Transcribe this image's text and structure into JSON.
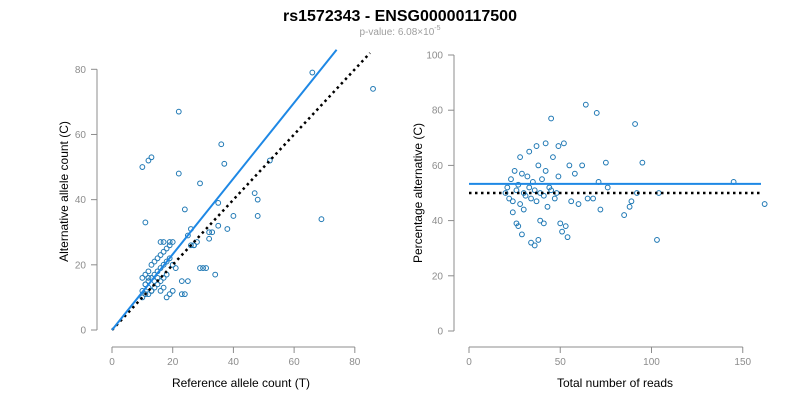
{
  "figure": {
    "title": "rs1572343 - ENSG00000117500",
    "subtitle_prefix": "p-value: 6.08×10",
    "subtitle_exponent": "-5"
  },
  "colors": {
    "points": "#1f78b4",
    "fit_line": "#1e88e5",
    "reference_line": "#000000",
    "axis": "#8c8c8c",
    "title": "#000000",
    "subtitle": "#9e9e9e"
  },
  "chart_data": [
    {
      "type": "scatter",
      "xlabel": "Reference allele count (T)",
      "ylabel": "Alternative allele count (C)",
      "xlim": [
        0,
        85
      ],
      "ylim": [
        0,
        85
      ],
      "xticks": [
        0,
        20,
        40,
        60,
        80
      ],
      "yticks": [
        0,
        20,
        40,
        60,
        80
      ],
      "grid": false,
      "points": [
        [
          10,
          10
        ],
        [
          11,
          11
        ],
        [
          12,
          11
        ],
        [
          13,
          12
        ],
        [
          14,
          13
        ],
        [
          15,
          14
        ],
        [
          16,
          15
        ],
        [
          17,
          16
        ],
        [
          18,
          17
        ],
        [
          12,
          13
        ],
        [
          10,
          12
        ],
        [
          11,
          14
        ],
        [
          12,
          15
        ],
        [
          13,
          16
        ],
        [
          14,
          17
        ],
        [
          15,
          18
        ],
        [
          16,
          19
        ],
        [
          17,
          20
        ],
        [
          18,
          21
        ],
        [
          19,
          22
        ],
        [
          10,
          16
        ],
        [
          11,
          17
        ],
        [
          12,
          18
        ],
        [
          13,
          20
        ],
        [
          14,
          21
        ],
        [
          15,
          22
        ],
        [
          16,
          23
        ],
        [
          17,
          24
        ],
        [
          18,
          25
        ],
        [
          19,
          26
        ],
        [
          11,
          14
        ],
        [
          12,
          16
        ],
        [
          13,
          12
        ],
        [
          14,
          15
        ],
        [
          15,
          16
        ],
        [
          16,
          12
        ],
        [
          17,
          13
        ],
        [
          18,
          10
        ],
        [
          19,
          11
        ],
        [
          20,
          12
        ],
        [
          10,
          50
        ],
        [
          11,
          33
        ],
        [
          12,
          52
        ],
        [
          13,
          53
        ],
        [
          16,
          27
        ],
        [
          17,
          27
        ],
        [
          19,
          27
        ],
        [
          20,
          27
        ],
        [
          22,
          67
        ],
        [
          22,
          48
        ],
        [
          24,
          37
        ],
        [
          25,
          29
        ],
        [
          26,
          31
        ],
        [
          27,
          26
        ],
        [
          28,
          27
        ],
        [
          29,
          45
        ],
        [
          29,
          19
        ],
        [
          30,
          19
        ],
        [
          31,
          19
        ],
        [
          32,
          28
        ],
        [
          32,
          30
        ],
        [
          33,
          30
        ],
        [
          34,
          17
        ],
        [
          35,
          39
        ],
        [
          35,
          32
        ],
        [
          36,
          57
        ],
        [
          37,
          51
        ],
        [
          38,
          31
        ],
        [
          40,
          35
        ],
        [
          47,
          42
        ],
        [
          48,
          40
        ],
        [
          48,
          35
        ],
        [
          52,
          52
        ],
        [
          66,
          79
        ],
        [
          69,
          34
        ],
        [
          86,
          74
        ],
        [
          20,
          20
        ],
        [
          21,
          19
        ],
        [
          23,
          15
        ],
        [
          24,
          11
        ],
        [
          25,
          15
        ],
        [
          23,
          11
        ],
        [
          26,
          26
        ],
        [
          27,
          26
        ]
      ],
      "fit_line": {
        "x": [
          0,
          74
        ],
        "y": [
          0,
          86
        ]
      },
      "reference_line": {
        "x": [
          0,
          85
        ],
        "y": [
          0,
          85
        ]
      }
    },
    {
      "type": "scatter",
      "xlabel": "Total number of reads",
      "ylabel": "Percentage alternative (C)",
      "xlim": [
        0,
        160
      ],
      "ylim": [
        0,
        100
      ],
      "xticks": [
        0,
        50,
        100,
        150
      ],
      "yticks": [
        0,
        20,
        40,
        60,
        80,
        100
      ],
      "grid": false,
      "points": [
        [
          20,
          50
        ],
        [
          21,
          52
        ],
        [
          22,
          48
        ],
        [
          23,
          55
        ],
        [
          24,
          47
        ],
        [
          25,
          58
        ],
        [
          26,
          51
        ],
        [
          27,
          53
        ],
        [
          28,
          46
        ],
        [
          29,
          57
        ],
        [
          30,
          50
        ],
        [
          31,
          49
        ],
        [
          32,
          56
        ],
        [
          33,
          52
        ],
        [
          34,
          48
        ],
        [
          35,
          54
        ],
        [
          36,
          51
        ],
        [
          37,
          47
        ],
        [
          38,
          60
        ],
        [
          39,
          50
        ],
        [
          40,
          55
        ],
        [
          41,
          49
        ],
        [
          42,
          58
        ],
        [
          43,
          45
        ],
        [
          44,
          52
        ],
        [
          45,
          51
        ],
        [
          46,
          63
        ],
        [
          47,
          48
        ],
        [
          48,
          50
        ],
        [
          49,
          56
        ],
        [
          26,
          39
        ],
        [
          27,
          38
        ],
        [
          29,
          35
        ],
        [
          34,
          32
        ],
        [
          36,
          31
        ],
        [
          38,
          33
        ],
        [
          39,
          40
        ],
        [
          41,
          39
        ],
        [
          50,
          39
        ],
        [
          51,
          36
        ],
        [
          53,
          38
        ],
        [
          54,
          34
        ],
        [
          56,
          47
        ],
        [
          60,
          46
        ],
        [
          62,
          60
        ],
        [
          64,
          82
        ],
        [
          65,
          48
        ],
        [
          68,
          48
        ],
        [
          70,
          79
        ],
        [
          71,
          54
        ],
        [
          72,
          44
        ],
        [
          75,
          61
        ],
        [
          76,
          52
        ],
        [
          85,
          42
        ],
        [
          88,
          45
        ],
        [
          89,
          47
        ],
        [
          91,
          75
        ],
        [
          92,
          50
        ],
        [
          95,
          61
        ],
        [
          103,
          33
        ],
        [
          104,
          50
        ],
        [
          145,
          54
        ],
        [
          162,
          46
        ],
        [
          28,
          63
        ],
        [
          33,
          65
        ],
        [
          37,
          67
        ],
        [
          42,
          68
        ],
        [
          45,
          77
        ],
        [
          49,
          67
        ],
        [
          52,
          68
        ],
        [
          55,
          60
        ],
        [
          58,
          57
        ],
        [
          30,
          44
        ],
        [
          24,
          43
        ]
      ],
      "fit_line": {
        "x": [
          0,
          160
        ],
        "y": [
          53.3,
          53.3
        ]
      },
      "reference_line": {
        "x": [
          0,
          160
        ],
        "y": [
          50,
          50
        ]
      }
    }
  ]
}
